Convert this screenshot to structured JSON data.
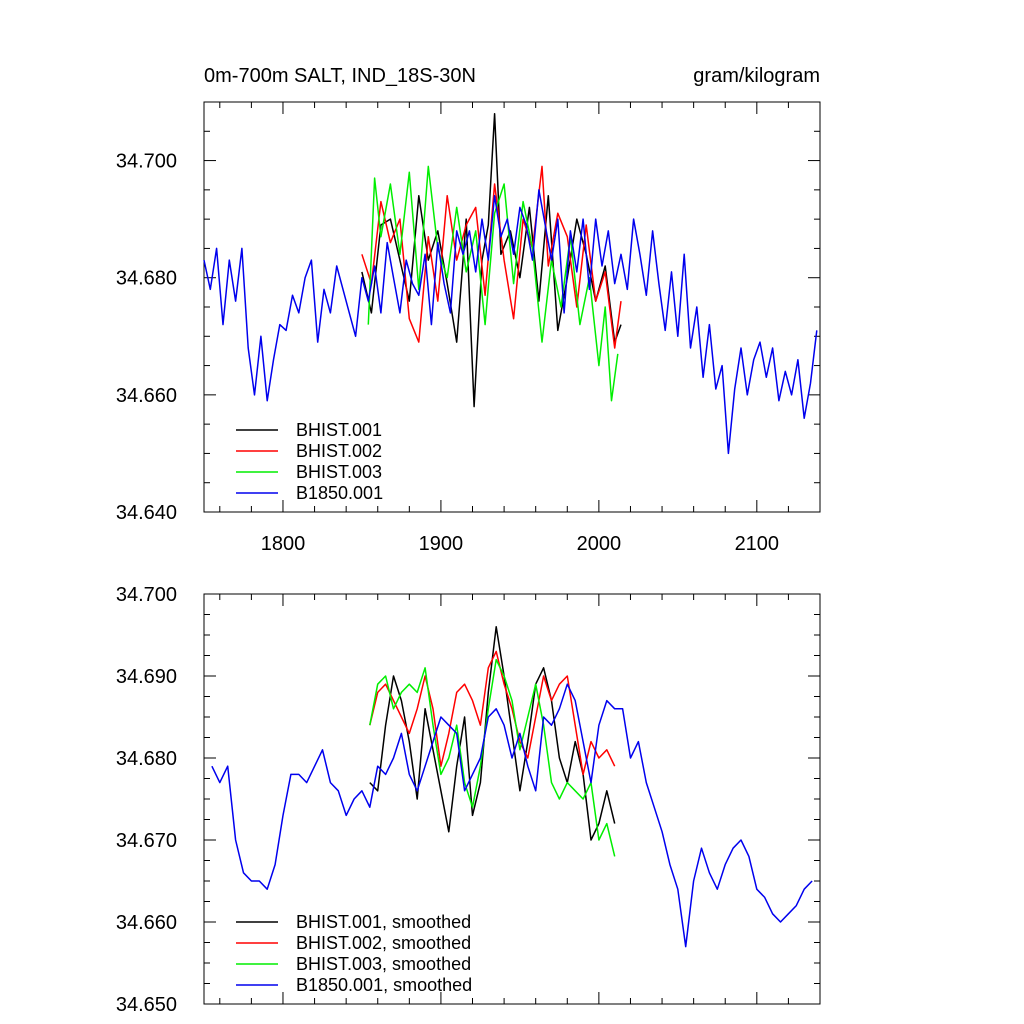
{
  "chart_data": [
    {
      "type": "line",
      "title": "0m-700m SALT, IND_18S-30N",
      "units": "gram/kilogram",
      "xlim": [
        1750,
        2140
      ],
      "ylim": [
        34.64,
        34.71
      ],
      "xticks": [
        1800,
        1900,
        2000,
        2100
      ],
      "x_tick_labels": [
        "1800",
        "1900",
        "2000",
        "2100"
      ],
      "yticks": [
        34.64,
        34.66,
        34.68,
        34.7
      ],
      "y_tick_labels": [
        "34.640",
        "34.660",
        "34.680",
        "34.700"
      ],
      "legend_position": "bottom-left",
      "series": [
        {
          "name": "BHIST.001",
          "color": "#000000",
          "x": [
            1850,
            1856,
            1862,
            1868,
            1874,
            1880,
            1886,
            1892,
            1898,
            1904,
            1910,
            1916,
            1921,
            1926,
            1930,
            1934,
            1938,
            1944,
            1950,
            1956,
            1962,
            1968,
            1974,
            1980,
            1986,
            1992,
            1998,
            2004,
            2010,
            2014
          ],
          "y": [
            34.681,
            34.674,
            34.689,
            34.69,
            34.683,
            34.676,
            34.694,
            34.683,
            34.688,
            34.679,
            34.669,
            34.69,
            34.658,
            34.683,
            34.689,
            34.708,
            34.684,
            34.688,
            34.68,
            34.692,
            34.676,
            34.694,
            34.671,
            34.68,
            34.69,
            34.684,
            34.676,
            34.682,
            34.669,
            34.672
          ]
        },
        {
          "name": "BHIST.002",
          "color": "#ff0000",
          "x": [
            1850,
            1856,
            1862,
            1868,
            1874,
            1880,
            1886,
            1892,
            1898,
            1904,
            1910,
            1916,
            1922,
            1928,
            1934,
            1940,
            1946,
            1952,
            1958,
            1964,
            1968,
            1974,
            1980,
            1986,
            1992,
            1998,
            2004,
            2010,
            2014
          ],
          "y": [
            34.684,
            34.679,
            34.693,
            34.686,
            34.69,
            34.673,
            34.669,
            34.687,
            34.676,
            34.694,
            34.683,
            34.689,
            34.692,
            34.677,
            34.696,
            34.683,
            34.673,
            34.69,
            34.685,
            34.699,
            34.682,
            34.691,
            34.687,
            34.675,
            34.689,
            34.676,
            34.681,
            34.668,
            34.676
          ]
        },
        {
          "name": "BHIST.003",
          "color": "#00ee00",
          "x": [
            1854,
            1858,
            1862,
            1868,
            1874,
            1880,
            1886,
            1892,
            1898,
            1904,
            1910,
            1916,
            1922,
            1928,
            1934,
            1940,
            1946,
            1952,
            1958,
            1964,
            1970,
            1976,
            1982,
            1988,
            1994,
            2000,
            2004,
            2008,
            2012
          ],
          "y": [
            34.672,
            34.697,
            34.687,
            34.696,
            34.684,
            34.698,
            34.678,
            34.699,
            34.685,
            34.68,
            34.692,
            34.681,
            34.688,
            34.672,
            34.691,
            34.696,
            34.679,
            34.693,
            34.685,
            34.669,
            34.683,
            34.675,
            34.687,
            34.672,
            34.68,
            34.665,
            34.675,
            34.659,
            34.667
          ]
        },
        {
          "name": "B1850.001",
          "color": "#0000ee",
          "x": [
            1750,
            1754,
            1758,
            1762,
            1766,
            1770,
            1774,
            1778,
            1782,
            1786,
            1790,
            1794,
            1798,
            1802,
            1806,
            1810,
            1814,
            1818,
            1822,
            1826,
            1830,
            1834,
            1838,
            1842,
            1846,
            1850,
            1854,
            1858,
            1862,
            1866,
            1870,
            1874,
            1878,
            1882,
            1886,
            1890,
            1894,
            1898,
            1902,
            1906,
            1910,
            1914,
            1918,
            1922,
            1926,
            1930,
            1934,
            1938,
            1942,
            1946,
            1950,
            1954,
            1958,
            1962,
            1966,
            1970,
            1974,
            1978,
            1982,
            1986,
            1990,
            1994,
            1998,
            2002,
            2006,
            2010,
            2014,
            2018,
            2022,
            2026,
            2030,
            2034,
            2038,
            2042,
            2046,
            2050,
            2054,
            2058,
            2062,
            2066,
            2070,
            2074,
            2078,
            2082,
            2086,
            2090,
            2094,
            2098,
            2102,
            2106,
            2110,
            2114,
            2118,
            2122,
            2126,
            2130,
            2134,
            2138
          ],
          "y": [
            34.683,
            34.678,
            34.685,
            34.672,
            34.683,
            34.676,
            34.685,
            34.668,
            34.66,
            34.67,
            34.659,
            34.666,
            34.672,
            34.671,
            34.677,
            34.674,
            34.68,
            34.683,
            34.669,
            34.678,
            34.674,
            34.682,
            34.678,
            34.674,
            34.67,
            34.68,
            34.676,
            34.682,
            34.674,
            34.686,
            34.68,
            34.674,
            34.683,
            34.679,
            34.677,
            34.684,
            34.672,
            34.686,
            34.679,
            34.674,
            34.688,
            34.684,
            34.688,
            34.681,
            34.69,
            34.683,
            34.694,
            34.687,
            34.69,
            34.684,
            34.692,
            34.689,
            34.683,
            34.695,
            34.689,
            34.683,
            34.69,
            34.674,
            34.688,
            34.681,
            34.69,
            34.678,
            34.69,
            34.682,
            34.688,
            34.679,
            34.684,
            34.678,
            34.69,
            34.684,
            34.677,
            34.688,
            34.679,
            34.671,
            34.681,
            34.67,
            34.684,
            34.668,
            34.675,
            34.663,
            34.672,
            34.661,
            34.665,
            34.65,
            34.661,
            34.668,
            34.66,
            34.666,
            34.669,
            34.663,
            34.668,
            34.659,
            34.664,
            34.66,
            34.666,
            34.656,
            34.662,
            34.671
          ]
        }
      ]
    },
    {
      "type": "line",
      "title": "",
      "xlim": [
        1750,
        2140
      ],
      "ylim": [
        34.65,
        34.7
      ],
      "xticks": [
        1800,
        1900,
        2000,
        2100
      ],
      "yticks": [
        34.65,
        34.66,
        34.67,
        34.68,
        34.69,
        34.7
      ],
      "y_tick_labels": [
        "34.650",
        "34.660",
        "34.670",
        "34.680",
        "34.690",
        "34.700"
      ],
      "legend_position": "bottom-left",
      "series": [
        {
          "name": "BHIST.001, smoothed",
          "color": "#000000",
          "x": [
            1855,
            1860,
            1865,
            1870,
            1875,
            1880,
            1885,
            1890,
            1895,
            1900,
            1905,
            1910,
            1915,
            1920,
            1925,
            1930,
            1935,
            1940,
            1945,
            1950,
            1955,
            1960,
            1965,
            1970,
            1975,
            1980,
            1985,
            1990,
            1995,
            2000,
            2005,
            2010
          ],
          "y": [
            34.677,
            34.676,
            34.684,
            34.69,
            34.687,
            34.682,
            34.675,
            34.686,
            34.681,
            34.676,
            34.671,
            34.679,
            34.685,
            34.673,
            34.677,
            34.688,
            34.696,
            34.69,
            34.683,
            34.676,
            34.682,
            34.689,
            34.691,
            34.687,
            34.68,
            34.677,
            34.682,
            34.678,
            34.67,
            34.672,
            34.676,
            34.672
          ]
        },
        {
          "name": "BHIST.002, smoothed",
          "color": "#ff0000",
          "x": [
            1855,
            1860,
            1865,
            1870,
            1875,
            1880,
            1885,
            1890,
            1895,
            1900,
            1905,
            1910,
            1915,
            1920,
            1925,
            1930,
            1935,
            1940,
            1945,
            1950,
            1955,
            1960,
            1965,
            1970,
            1975,
            1980,
            1985,
            1990,
            1995,
            2000,
            2005,
            2010
          ],
          "y": [
            34.684,
            34.688,
            34.689,
            34.687,
            34.685,
            34.683,
            34.686,
            34.69,
            34.686,
            34.679,
            34.683,
            34.688,
            34.689,
            34.687,
            34.684,
            34.691,
            34.693,
            34.689,
            34.686,
            34.682,
            34.68,
            34.685,
            34.69,
            34.687,
            34.689,
            34.69,
            34.684,
            34.678,
            34.682,
            34.68,
            34.681,
            34.679
          ]
        },
        {
          "name": "BHIST.003, smoothed",
          "color": "#00ee00",
          "x": [
            1855,
            1860,
            1865,
            1870,
            1875,
            1880,
            1885,
            1890,
            1895,
            1900,
            1905,
            1910,
            1915,
            1920,
            1925,
            1930,
            1935,
            1940,
            1945,
            1950,
            1955,
            1960,
            1965,
            1970,
            1975,
            1980,
            1985,
            1990,
            1995,
            2000,
            2005,
            2010
          ],
          "y": [
            34.684,
            34.689,
            34.69,
            34.686,
            34.688,
            34.689,
            34.688,
            34.691,
            34.684,
            34.678,
            34.68,
            34.684,
            34.677,
            34.674,
            34.679,
            34.686,
            34.692,
            34.69,
            34.687,
            34.681,
            34.685,
            34.689,
            34.684,
            34.677,
            34.675,
            34.677,
            34.676,
            34.675,
            34.677,
            34.67,
            34.672,
            34.668
          ]
        },
        {
          "name": "B1850.001, smoothed",
          "color": "#0000ee",
          "x": [
            1755,
            1760,
            1765,
            1770,
            1775,
            1780,
            1785,
            1790,
            1795,
            1800,
            1805,
            1810,
            1815,
            1820,
            1825,
            1830,
            1835,
            1840,
            1845,
            1850,
            1855,
            1860,
            1865,
            1870,
            1875,
            1880,
            1885,
            1890,
            1895,
            1900,
            1905,
            1910,
            1915,
            1920,
            1925,
            1930,
            1935,
            1940,
            1945,
            1950,
            1955,
            1960,
            1965,
            1970,
            1975,
            1980,
            1985,
            1990,
            1995,
            2000,
            2005,
            2010,
            2015,
            2020,
            2025,
            2030,
            2035,
            2040,
            2045,
            2050,
            2055,
            2060,
            2065,
            2070,
            2075,
            2080,
            2085,
            2090,
            2095,
            2100,
            2105,
            2110,
            2115,
            2120,
            2125,
            2130,
            2135
          ],
          "y": [
            34.679,
            34.677,
            34.679,
            34.67,
            34.666,
            34.665,
            34.665,
            34.664,
            34.667,
            34.673,
            34.678,
            34.678,
            34.677,
            34.679,
            34.681,
            34.677,
            34.676,
            34.673,
            34.675,
            34.676,
            34.674,
            34.679,
            34.678,
            34.68,
            34.683,
            34.678,
            34.676,
            34.679,
            34.682,
            34.685,
            34.684,
            34.683,
            34.676,
            34.678,
            34.68,
            34.685,
            34.686,
            34.684,
            34.68,
            34.683,
            34.679,
            34.676,
            34.685,
            34.684,
            34.686,
            34.689,
            34.687,
            34.682,
            34.677,
            34.684,
            34.687,
            34.686,
            34.686,
            34.68,
            34.682,
            34.677,
            34.674,
            34.671,
            34.667,
            34.664,
            34.657,
            34.665,
            34.669,
            34.666,
            34.664,
            34.667,
            34.669,
            34.67,
            34.668,
            34.664,
            34.663,
            34.661,
            34.66,
            34.661,
            34.662,
            34.664,
            34.665
          ]
        }
      ]
    }
  ]
}
